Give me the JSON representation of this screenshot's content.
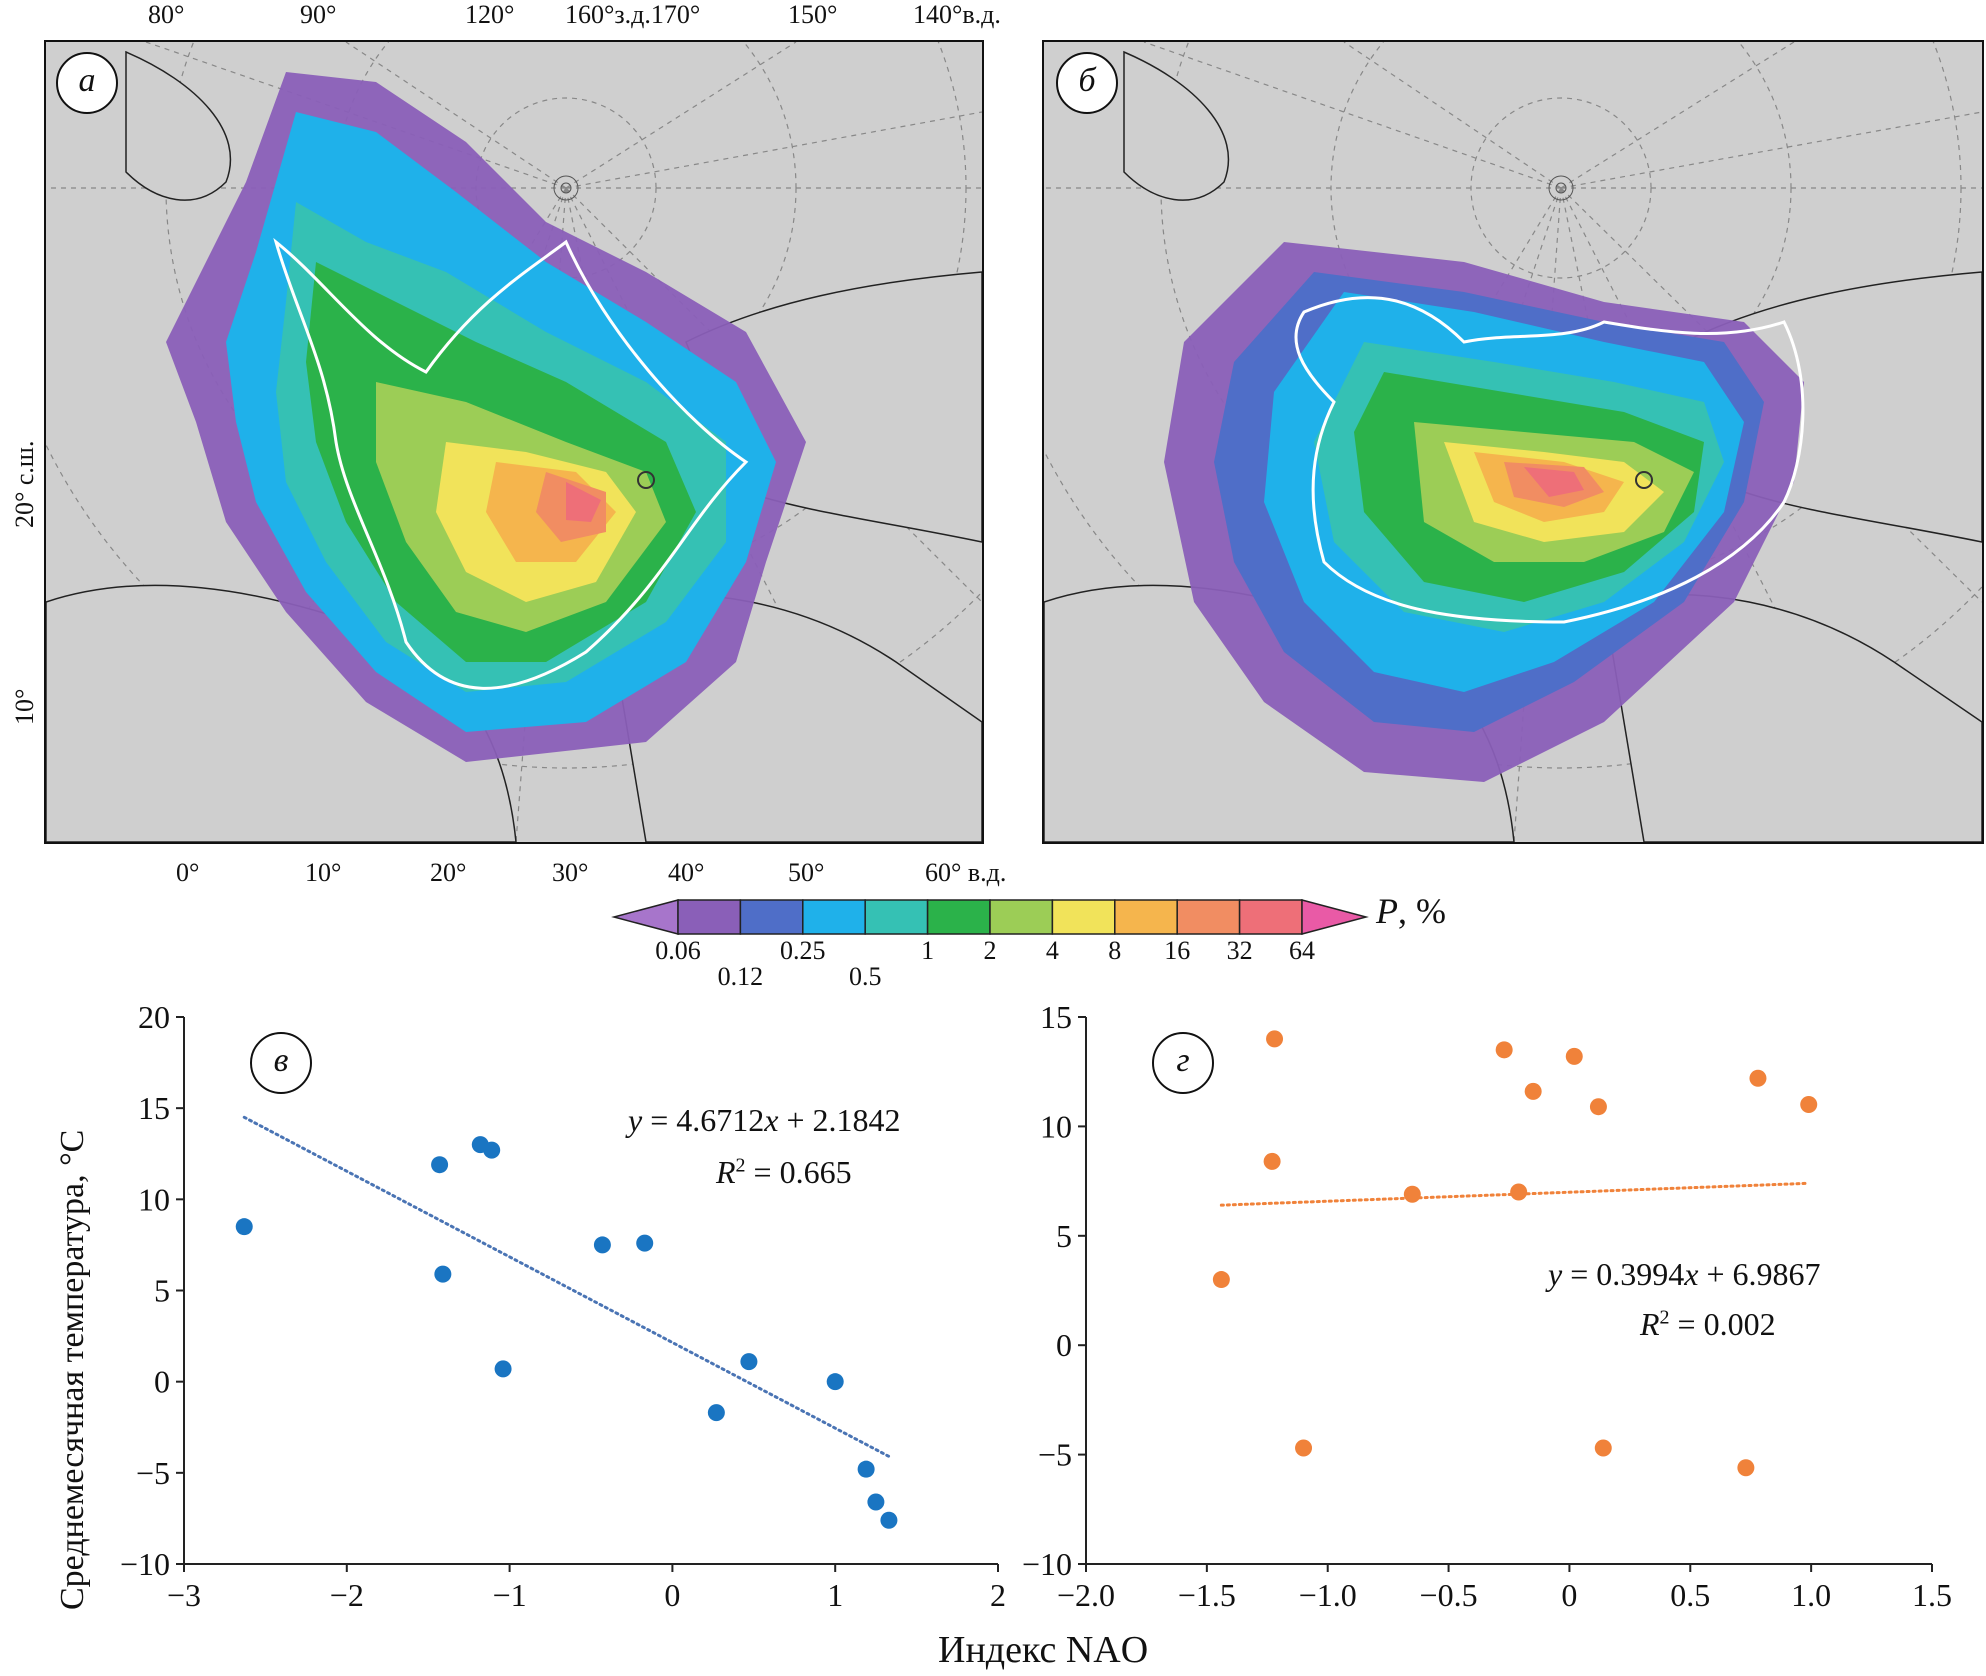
{
  "map_labels": {
    "top_lon": [
      "80°",
      "90°",
      "120°",
      "160°з.д.170°",
      "150°",
      "140°в.д."
    ],
    "bottom_lon": [
      "0°",
      "10°",
      "20°",
      "30°",
      "40°",
      "50°",
      "60° в.д."
    ],
    "left_lat": [
      "20° с.ш.",
      "10°"
    ]
  },
  "panels": {
    "a": "а",
    "b": "б",
    "c": "в",
    "d": "г"
  },
  "colorbar": {
    "title_var": "P",
    "title_unit": ", %",
    "upper_labels": [
      "0.06",
      "0.25",
      "1",
      "2",
      "4",
      "8",
      "16",
      "32",
      "64"
    ],
    "lower_labels": [
      "0.12",
      "0.5"
    ],
    "colors": [
      "#8a5fb8",
      "#4f6ec8",
      "#1fb1ea",
      "#35c1b4",
      "#2bb24a",
      "#9ccd56",
      "#f1e35a",
      "#f5b54d",
      "#f18d62",
      "#ee6f78"
    ],
    "end_left_color": "#a775cb",
    "end_right_color": "#e95aa6"
  },
  "axes": {
    "ylabel": "Среднемесячная температура, °C",
    "xlabel": "Индекс NAO"
  },
  "chart_data": [
    {
      "type": "scatter",
      "panel": "в",
      "xlim": [
        -3,
        2
      ],
      "ylim": [
        -10,
        20
      ],
      "xticks": [
        "−3",
        "−2",
        "−1",
        "0",
        "1",
        "2"
      ],
      "yticks": [
        "−10",
        "−5",
        "0",
        "5",
        "10",
        "15",
        "20"
      ],
      "xtick_values": [
        -3,
        -2,
        -1,
        0,
        1,
        2
      ],
      "ytick_values": [
        -10,
        -5,
        0,
        5,
        10,
        15,
        20
      ],
      "point_color": "#1a75c2",
      "points": [
        {
          "x": -2.63,
          "y": 8.5
        },
        {
          "x": -1.43,
          "y": 11.9
        },
        {
          "x": -1.41,
          "y": 5.9
        },
        {
          "x": -1.18,
          "y": 13.0
        },
        {
          "x": -1.11,
          "y": 12.7
        },
        {
          "x": -1.04,
          "y": 0.7
        },
        {
          "x": -0.43,
          "y": 7.5
        },
        {
          "x": -0.17,
          "y": 7.6
        },
        {
          "x": 0.27,
          "y": -1.7
        },
        {
          "x": 0.47,
          "y": 1.1
        },
        {
          "x": 1.0,
          "y": 0.0
        },
        {
          "x": 1.19,
          "y": -4.8
        },
        {
          "x": 1.25,
          "y": -6.6
        },
        {
          "x": 1.33,
          "y": -7.6
        }
      ],
      "trendline": {
        "x": [
          -2.63,
          1.33
        ],
        "y": [
          14.5,
          -4.1
        ],
        "color": "#4a74b4"
      },
      "equation": {
        "var": "y",
        "rhs": " = 4.6712",
        "xvar": "x",
        "tail": " + 2.1842"
      },
      "r2": {
        "var": "R",
        "exp": "2",
        "rhs": " = 0.665"
      }
    },
    {
      "type": "scatter",
      "panel": "г",
      "xlim": [
        -2.0,
        1.5
      ],
      "ylim": [
        -10,
        15
      ],
      "xticks": [
        "−2.0",
        "−1.5",
        "−1.0",
        "−0.5",
        "0",
        "0.5",
        "1.0",
        "1.5"
      ],
      "yticks": [
        "−10",
        "−5",
        "0",
        "5",
        "10",
        "15"
      ],
      "xtick_values": [
        -2.0,
        -1.5,
        -1.0,
        -0.5,
        0,
        0.5,
        1.0,
        1.5
      ],
      "ytick_values": [
        -10,
        -5,
        0,
        5,
        10,
        15
      ],
      "point_color": "#f0823a",
      "points": [
        {
          "x": -1.44,
          "y": 3.0
        },
        {
          "x": -1.22,
          "y": 14.0
        },
        {
          "x": -1.23,
          "y": 8.4
        },
        {
          "x": -1.1,
          "y": -4.7
        },
        {
          "x": -0.65,
          "y": 6.9
        },
        {
          "x": -0.27,
          "y": 13.5
        },
        {
          "x": -0.21,
          "y": 7.0
        },
        {
          "x": -0.15,
          "y": 11.6
        },
        {
          "x": 0.02,
          "y": 13.2
        },
        {
          "x": 0.12,
          "y": 10.9
        },
        {
          "x": 0.14,
          "y": -4.7
        },
        {
          "x": 0.73,
          "y": -5.6
        },
        {
          "x": 0.78,
          "y": 12.2
        },
        {
          "x": 0.99,
          "y": 11.0
        }
      ],
      "trendline": {
        "x": [
          -1.44,
          0.99
        ],
        "y": [
          6.4,
          7.4
        ],
        "color": "#f0823a"
      },
      "equation": {
        "var": "y",
        "rhs": " = 0.3994",
        "xvar": "x",
        "tail": " + 6.9867"
      },
      "r2": {
        "var": "R",
        "exp": "2",
        "rhs": " = 0.002"
      }
    }
  ]
}
